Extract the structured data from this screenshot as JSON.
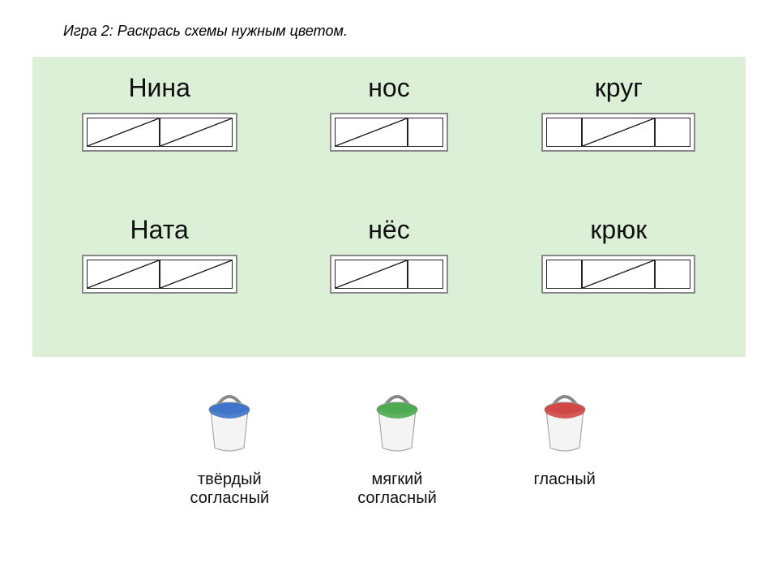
{
  "instruction": "Игра 2: Раскрась схемы нужным цветом.",
  "panel": {
    "background": "#dcf0d8",
    "words": [
      {
        "label": "Нина",
        "cells": [
          {
            "w": "wide",
            "diag": true
          },
          {
            "w": "wide",
            "diag": true
          }
        ]
      },
      {
        "label": "нос",
        "cells": [
          {
            "w": "wide",
            "diag": true
          },
          {
            "w": "narrow",
            "diag": false
          }
        ]
      },
      {
        "label": "круг",
        "cells": [
          {
            "w": "narrow",
            "diag": false
          },
          {
            "w": "wide",
            "diag": true
          },
          {
            "w": "narrow",
            "diag": false
          }
        ]
      },
      {
        "label": "Ната",
        "cells": [
          {
            "w": "wide",
            "diag": true
          },
          {
            "w": "wide",
            "diag": true
          }
        ]
      },
      {
        "label": "нёс",
        "cells": [
          {
            "w": "wide",
            "diag": true
          },
          {
            "w": "narrow",
            "diag": false
          }
        ]
      },
      {
        "label": "крюк",
        "cells": [
          {
            "w": "narrow",
            "diag": false
          },
          {
            "w": "wide",
            "diag": true
          },
          {
            "w": "narrow",
            "diag": false
          }
        ]
      }
    ]
  },
  "legend": {
    "items": [
      {
        "label": "твёрдый\nсогласный",
        "color": "#3e74c9"
      },
      {
        "label": "мягкий\nсогласный",
        "color": "#4fab52"
      },
      {
        "label": "гласный",
        "color": "#d04846"
      }
    ],
    "bucket_body": "#f4f4f4",
    "bucket_outline": "#9a9a9a",
    "handle": "#888888"
  },
  "style": {
    "cell_border": "#222222",
    "scheme_outer_border": "#888888",
    "word_fontsize": 32,
    "instruction_fontsize": 18,
    "legend_fontsize": 20
  }
}
